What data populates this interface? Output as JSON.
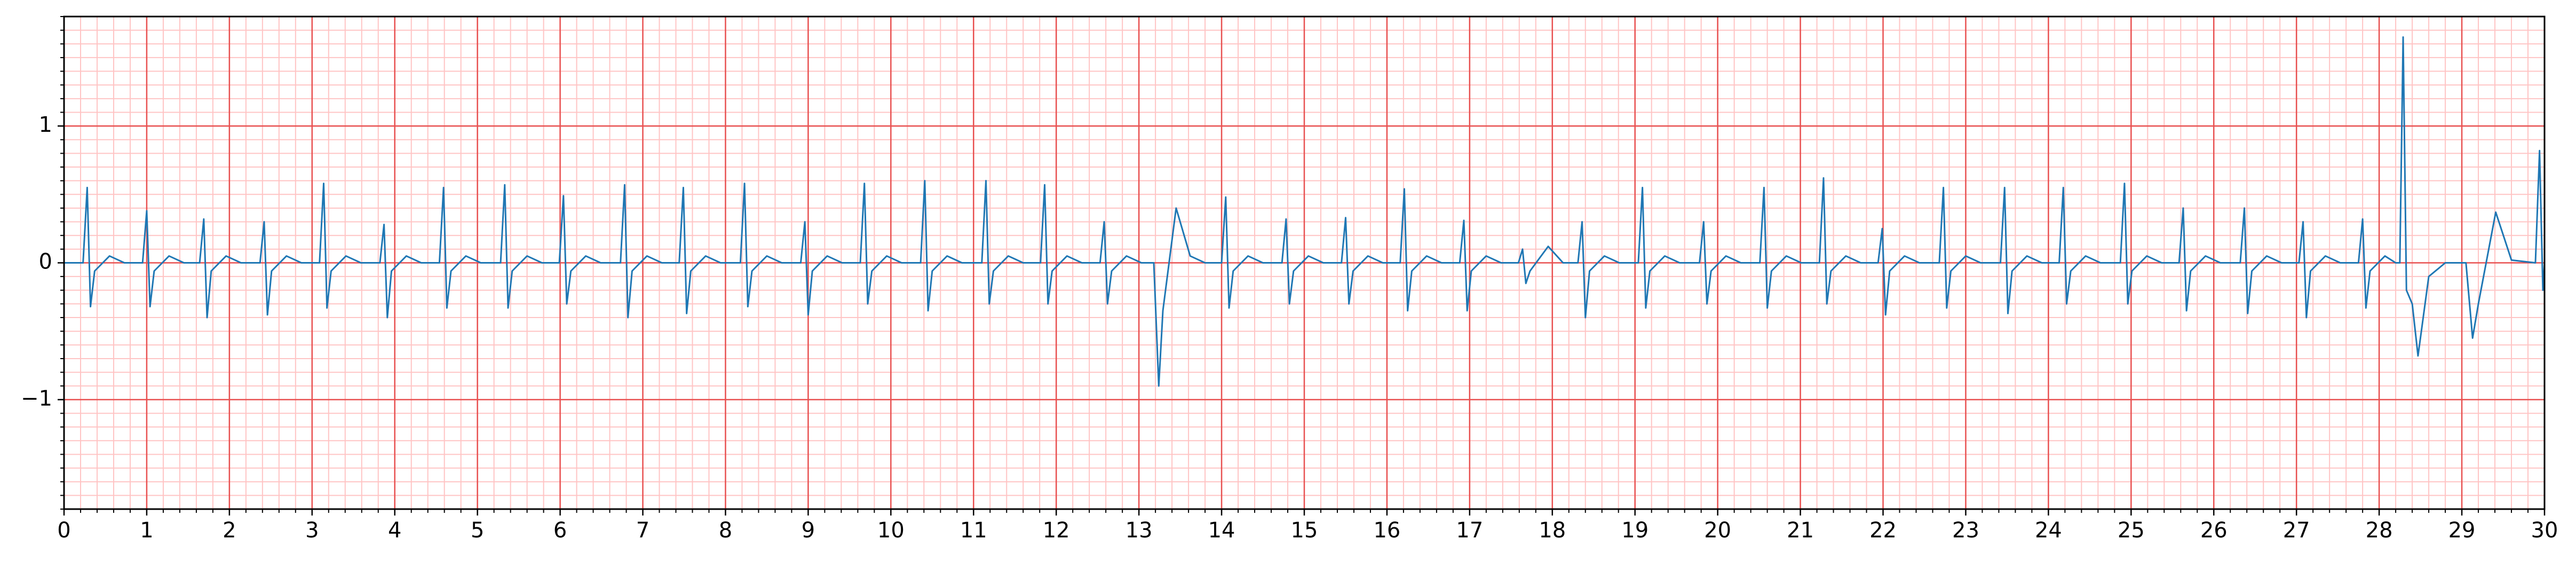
{
  "chart_data": {
    "type": "line",
    "x": [
      0,
      0.23,
      0.28,
      0.32,
      0.37,
      0.55,
      0.73,
      0.95,
      1.0,
      1.04,
      1.09,
      1.27,
      1.45,
      1.64,
      1.69,
      1.73,
      1.78,
      1.96,
      2.14,
      2.37,
      2.42,
      2.46,
      2.51,
      2.69,
      2.87,
      3.09,
      3.14,
      3.18,
      3.23,
      3.41,
      3.59,
      3.82,
      3.87,
      3.91,
      3.96,
      4.14,
      4.32,
      4.54,
      4.59,
      4.63,
      4.68,
      4.86,
      5.04,
      5.28,
      5.33,
      5.37,
      5.42,
      5.6,
      5.78,
      5.99,
      6.04,
      6.08,
      6.13,
      6.31,
      6.49,
      6.73,
      6.78,
      6.82,
      6.87,
      7.05,
      7.23,
      7.44,
      7.49,
      7.53,
      7.58,
      7.76,
      7.94,
      8.18,
      8.23,
      8.27,
      8.32,
      8.5,
      8.68,
      8.91,
      8.96,
      9.0,
      9.05,
      9.23,
      9.41,
      9.63,
      9.68,
      9.72,
      9.77,
      9.95,
      10.13,
      10.36,
      10.41,
      10.45,
      10.5,
      10.68,
      10.86,
      11.1,
      11.15,
      11.19,
      11.24,
      11.42,
      11.6,
      11.81,
      11.86,
      11.9,
      11.95,
      12.13,
      12.31,
      12.53,
      12.58,
      12.62,
      12.67,
      12.85,
      13.03,
      13.18,
      13.24,
      13.29,
      13.45,
      13.62,
      13.8,
      14.0,
      14.05,
      14.09,
      14.14,
      14.32,
      14.5,
      14.73,
      14.78,
      14.82,
      14.87,
      15.05,
      15.23,
      15.45,
      15.5,
      15.54,
      15.59,
      15.77,
      15.95,
      16.16,
      16.21,
      16.25,
      16.3,
      16.48,
      16.66,
      16.88,
      16.93,
      16.97,
      17.02,
      17.2,
      17.38,
      17.59,
      17.64,
      17.68,
      17.73,
      17.95,
      18.13,
      18.31,
      18.36,
      18.4,
      18.45,
      18.63,
      18.81,
      19.04,
      19.09,
      19.13,
      19.18,
      19.36,
      19.54,
      19.78,
      19.83,
      19.87,
      19.92,
      20.1,
      20.28,
      20.51,
      20.56,
      20.6,
      20.65,
      20.83,
      21.01,
      21.23,
      21.28,
      21.32,
      21.37,
      21.55,
      21.73,
      21.94,
      21.99,
      22.03,
      22.08,
      22.26,
      22.44,
      22.68,
      22.73,
      22.77,
      22.82,
      23.0,
      23.18,
      23.42,
      23.47,
      23.51,
      23.56,
      23.74,
      23.92,
      24.13,
      24.18,
      24.22,
      24.27,
      24.45,
      24.63,
      24.87,
      24.92,
      24.96,
      25.01,
      25.19,
      25.37,
      25.58,
      25.63,
      25.67,
      25.72,
      25.9,
      26.08,
      26.32,
      26.37,
      26.41,
      26.46,
      26.64,
      26.82,
      27.03,
      27.08,
      27.12,
      27.17,
      27.35,
      27.53,
      27.75,
      27.8,
      27.84,
      27.89,
      28.07,
      28.2,
      28.25,
      28.29,
      28.33,
      28.4,
      28.47,
      28.6,
      28.8,
      29.05,
      29.13,
      29.2,
      29.41,
      29.6,
      29.89,
      29.94,
      29.98,
      30.0
    ],
    "series": [
      {
        "color": "#1f77b4",
        "values": [
          0,
          0,
          0.55,
          -0.32,
          -0.06,
          0.05,
          0,
          0,
          0.38,
          -0.32,
          -0.06,
          0.05,
          0,
          0,
          0.32,
          -0.4,
          -0.06,
          0.05,
          0,
          0,
          0.3,
          -0.38,
          -0.06,
          0.05,
          0,
          0,
          0.58,
          -0.33,
          -0.06,
          0.05,
          0,
          0,
          0.28,
          -0.4,
          -0.06,
          0.05,
          0,
          0,
          0.55,
          -0.33,
          -0.06,
          0.05,
          0,
          0,
          0.57,
          -0.33,
          -0.06,
          0.05,
          0,
          0,
          0.49,
          -0.3,
          -0.06,
          0.05,
          0,
          0,
          0.57,
          -0.4,
          -0.06,
          0.05,
          0,
          0,
          0.55,
          -0.37,
          -0.06,
          0.05,
          0,
          0,
          0.58,
          -0.32,
          -0.06,
          0.05,
          0,
          0,
          0.3,
          -0.38,
          -0.06,
          0.05,
          0,
          0,
          0.58,
          -0.3,
          -0.06,
          0.05,
          0,
          0,
          0.6,
          -0.35,
          -0.06,
          0.05,
          0,
          0,
          0.6,
          -0.3,
          -0.06,
          0.05,
          0,
          0,
          0.57,
          -0.3,
          -0.06,
          0.05,
          0,
          0,
          0.3,
          -0.3,
          -0.06,
          0.05,
          0,
          0,
          -0.9,
          -0.35,
          0.4,
          0.05,
          0,
          0,
          0.48,
          -0.33,
          -0.06,
          0.05,
          0,
          0,
          0.32,
          -0.3,
          -0.06,
          0.05,
          0,
          0,
          0.33,
          -0.3,
          -0.06,
          0.05,
          0,
          0,
          0.54,
          -0.35,
          -0.06,
          0.05,
          0,
          0,
          0.31,
          -0.35,
          -0.06,
          0.05,
          0,
          0,
          0.1,
          -0.15,
          -0.06,
          0.12,
          0,
          0,
          0.3,
          -0.4,
          -0.06,
          0.05,
          0,
          0,
          0.55,
          -0.33,
          -0.06,
          0.05,
          0,
          0,
          0.3,
          -0.3,
          -0.06,
          0.05,
          0,
          0,
          0.55,
          -0.33,
          -0.06,
          0.05,
          0,
          0,
          0.62,
          -0.3,
          -0.06,
          0.05,
          0,
          0,
          0.25,
          -0.38,
          -0.06,
          0.05,
          0,
          0,
          0.55,
          -0.33,
          -0.06,
          0.05,
          0,
          0,
          0.55,
          -0.37,
          -0.06,
          0.05,
          0,
          0,
          0.55,
          -0.3,
          -0.06,
          0.05,
          0,
          0,
          0.58,
          -0.3,
          -0.06,
          0.05,
          0,
          0,
          0.4,
          -0.35,
          -0.06,
          0.05,
          0,
          0,
          0.4,
          -0.37,
          -0.06,
          0.05,
          0,
          0,
          0.3,
          -0.4,
          -0.06,
          0.05,
          0,
          0,
          0.32,
          -0.33,
          -0.06,
          0.05,
          0,
          0,
          1.65,
          -0.2,
          -0.3,
          -0.68,
          -0.1,
          0,
          0,
          -0.55,
          -0.3,
          0.37,
          0.02,
          0,
          0.82,
          -0.2,
          0
        ]
      }
    ],
    "xlim": [
      0,
      30
    ],
    "xticks": [
      0,
      1,
      2,
      3,
      4,
      5,
      6,
      7,
      8,
      9,
      10,
      11,
      12,
      13,
      14,
      15,
      16,
      17,
      18,
      19,
      20,
      21,
      22,
      23,
      24,
      25,
      26,
      27,
      28,
      29,
      30
    ],
    "ylim": [
      -1.8,
      1.8
    ],
    "yticks": [
      {
        "value": -1,
        "label": "−1"
      },
      0,
      1
    ],
    "grid": true
  }
}
